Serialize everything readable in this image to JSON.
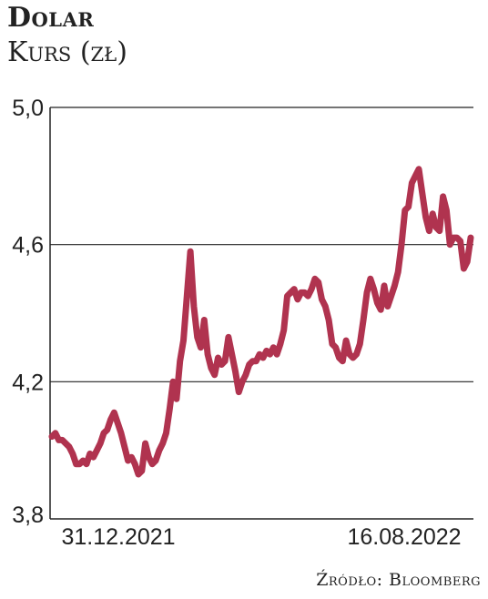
{
  "header": {
    "title": "Dolar",
    "subtitle": "Kurs (zł)"
  },
  "source": "Źródło: Bloomberg",
  "chart_data": {
    "type": "line",
    "title": "Dolar",
    "subtitle": "Kurs (zł)",
    "xlabel": "",
    "ylabel": "",
    "ylim": [
      3.8,
      5.0
    ],
    "yticks": [
      "5,0",
      "4,6",
      "4,2",
      "3,8"
    ],
    "ytick_values": [
      5.0,
      4.6,
      4.2,
      3.8
    ],
    "xtick_labels": [
      "31.12.2021",
      "16.08.2022"
    ],
    "grid": "horizontal",
    "legend": "none",
    "line_color": "#b0334f",
    "series": [
      {
        "values": [
          4.04,
          4.05,
          4.03,
          4.03,
          4.02,
          4.01,
          3.99,
          3.96,
          3.96,
          3.97,
          3.96,
          3.99,
          3.98,
          4.0,
          4.02,
          4.05,
          4.06,
          4.09,
          4.11,
          4.08,
          4.05,
          4.01,
          3.97,
          3.98,
          3.96,
          3.93,
          3.94,
          4.02,
          3.98,
          3.96,
          3.97,
          4.0,
          4.02,
          4.05,
          4.12,
          4.2,
          4.15,
          4.26,
          4.32,
          4.45,
          4.58,
          4.42,
          4.33,
          4.3,
          4.38,
          4.28,
          4.24,
          4.22,
          4.27,
          4.25,
          4.26,
          4.33,
          4.28,
          4.23,
          4.17,
          4.2,
          4.22,
          4.25,
          4.26,
          4.26,
          4.28,
          4.27,
          4.29,
          4.28,
          4.3,
          4.28,
          4.31,
          4.35,
          4.45,
          4.46,
          4.47,
          4.44,
          4.46,
          4.46,
          4.45,
          4.47,
          4.5,
          4.49,
          4.44,
          4.42,
          4.38,
          4.31,
          4.3,
          4.27,
          4.26,
          4.32,
          4.28,
          4.27,
          4.28,
          4.31,
          4.38,
          4.46,
          4.5,
          4.47,
          4.43,
          4.41,
          4.48,
          4.42,
          4.45,
          4.48,
          4.52,
          4.6,
          4.7,
          4.71,
          4.78,
          4.8,
          4.82,
          4.75,
          4.68,
          4.64,
          4.69,
          4.65,
          4.64,
          4.74,
          4.7,
          4.6,
          4.62,
          4.62,
          4.61,
          4.53,
          4.55,
          4.62
        ]
      }
    ]
  }
}
